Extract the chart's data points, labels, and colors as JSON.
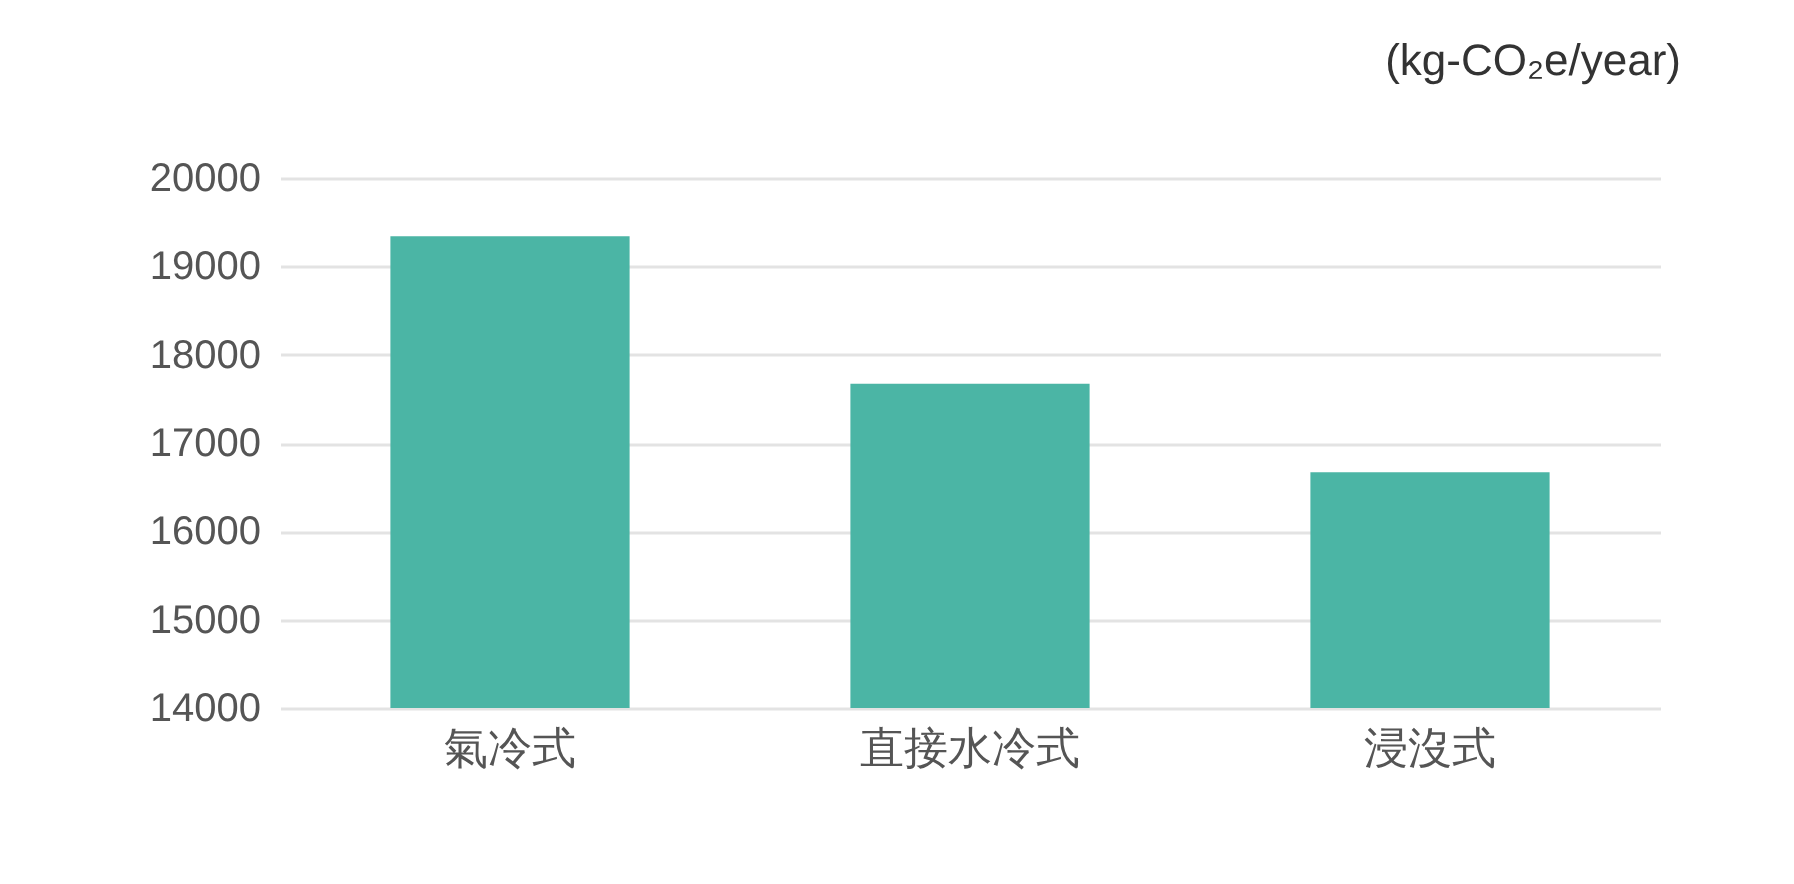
{
  "chart_data": {
    "type": "bar",
    "ylabel": "(kg-CO₂e/year)",
    "categories": [
      "氣冷式",
      "直接水冷式",
      "浸沒式"
    ],
    "values": [
      19340,
      17670,
      16670
    ],
    "color": "#4bb5a5",
    "ylim": [
      14000,
      20000
    ],
    "yticks": [
      14000,
      15000,
      16000,
      17000,
      18000,
      19000,
      20000
    ],
    "grid": "y"
  }
}
